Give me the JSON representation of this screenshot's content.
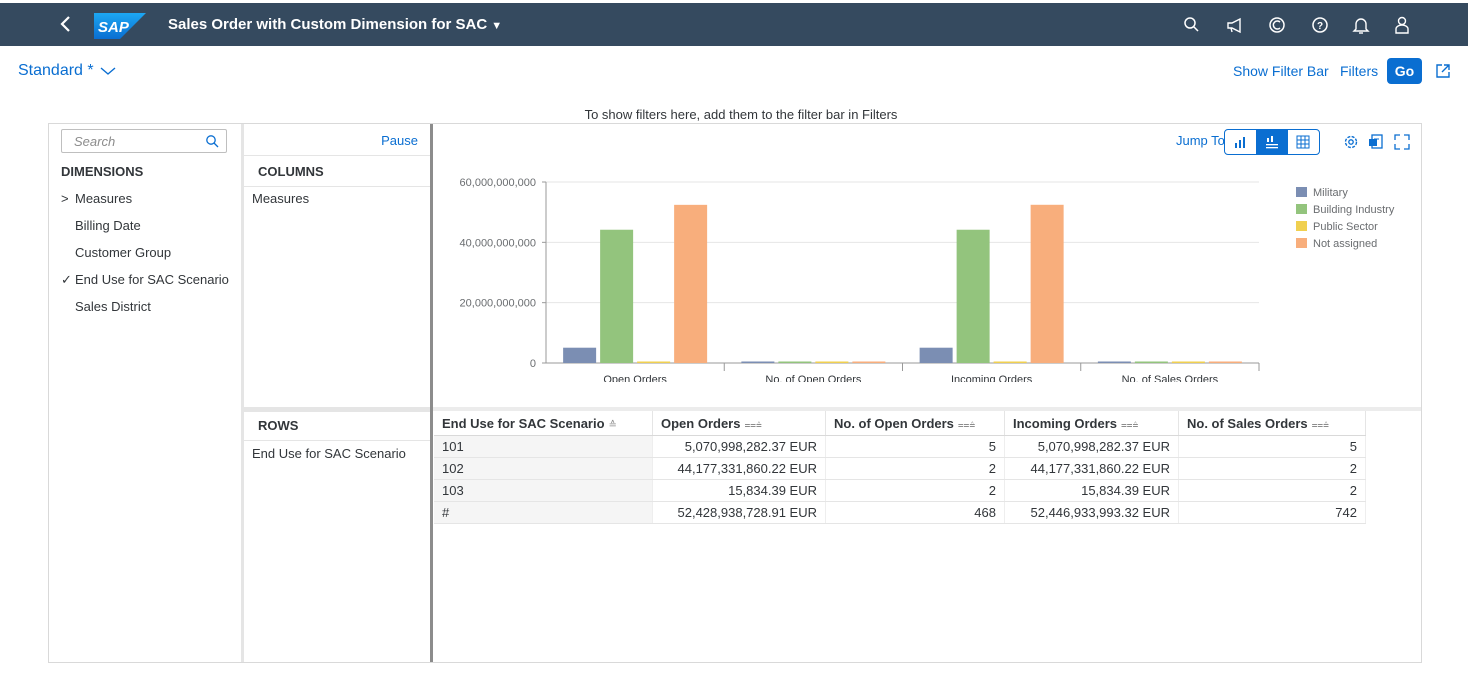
{
  "shell": {
    "title": "Sales Order with Custom Dimension for SAC",
    "logo_text": "SAP",
    "icons": [
      "back-icon",
      "search-icon",
      "megaphone-icon",
      "copilot-icon",
      "help-icon",
      "bell-icon",
      "user-icon"
    ]
  },
  "variant": {
    "name": "Standard *"
  },
  "header_actions": {
    "show_filter_bar": "Show Filter Bar",
    "filters": "Filters",
    "go": "Go"
  },
  "filter_hint": "To show filters here, add them to the filter bar in Filters",
  "dimensions_panel": {
    "search_placeholder": "Search",
    "title": "DIMENSIONS",
    "items": [
      {
        "label": "Measures",
        "marker": ">"
      },
      {
        "label": "Billing Date",
        "marker": ""
      },
      {
        "label": "Customer Group",
        "marker": ""
      },
      {
        "label": "End Use for SAC Scenario",
        "marker": "✓"
      },
      {
        "label": "Sales District",
        "marker": ""
      }
    ]
  },
  "layout_panel": {
    "pause": "Pause",
    "columns_title": "COLUMNS",
    "columns_items": [
      "Measures"
    ],
    "rows_title": "ROWS",
    "rows_items": [
      "End Use for SAC Scenario"
    ]
  },
  "toolbar": {
    "jump_to": "Jump To"
  },
  "chart_data": {
    "type": "bar",
    "categories": [
      "Open Orders",
      "No. of Open Orders",
      "Incoming Orders",
      "No. of Sales Orders"
    ],
    "series": [
      {
        "name": "Military",
        "color": "#7b8eb3",
        "values": [
          5070998282.37,
          5,
          5070998282.37,
          5
        ]
      },
      {
        "name": "Building Industry",
        "color": "#93c47d",
        "values": [
          44177331860.22,
          2,
          44177331860.22,
          2
        ]
      },
      {
        "name": "Public Sector",
        "color": "#f0d050",
        "values": [
          15834.39,
          2,
          15834.39,
          2
        ]
      },
      {
        "name": "Not assigned",
        "color": "#f8ae7c",
        "values": [
          52428938728.91,
          468,
          52446933993.32,
          742
        ]
      }
    ],
    "yticks": [
      "60,000,000,000",
      "40,000,000,000",
      "20,000,000,000",
      "0"
    ],
    "ylim": [
      0,
      60000000000
    ],
    "legend_position": "top-right",
    "grid": true
  },
  "table": {
    "headers": [
      "End Use for SAC Scenario",
      "Open Orders",
      "No. of Open Orders",
      "Incoming Orders",
      "No. of Sales Orders"
    ],
    "rows": [
      [
        "101",
        "5,070,998,282.37 EUR",
        "5",
        "5,070,998,282.37 EUR",
        "5"
      ],
      [
        "102",
        "44,177,331,860.22 EUR",
        "2",
        "44,177,331,860.22 EUR",
        "2"
      ],
      [
        "103",
        "15,834.39 EUR",
        "2",
        "15,834.39 EUR",
        "2"
      ],
      [
        "#",
        "52,428,938,728.91 EUR",
        "468",
        "52,446,933,993.32 EUR",
        "742"
      ]
    ]
  }
}
